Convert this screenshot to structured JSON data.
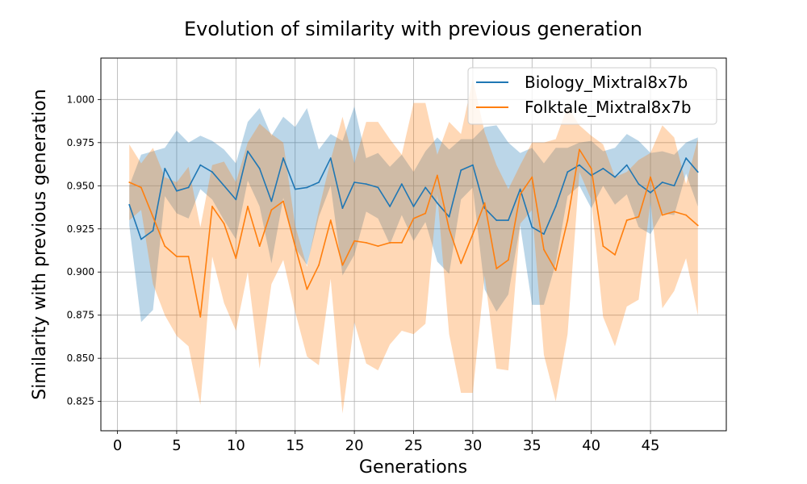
{
  "chart_data": {
    "type": "line",
    "title": "Evolution of similarity with previous generation",
    "xlabel": "Generations",
    "ylabel": "Similarity with previous generation",
    "xlim": [
      -1.4,
      51.4
    ],
    "ylim": [
      0.808,
      1.024
    ],
    "xticks": [
      0,
      5,
      10,
      15,
      20,
      25,
      30,
      35,
      40,
      45
    ],
    "yticks": [
      0.825,
      0.85,
      0.875,
      0.9,
      0.925,
      0.95,
      0.975,
      1.0
    ],
    "xtick_labels": [
      "0",
      "5",
      "10",
      "15",
      "20",
      "25",
      "30",
      "35",
      "40",
      "45"
    ],
    "ytick_labels": [
      "0.825",
      "0.850",
      "0.875",
      "0.900",
      "0.925",
      "0.950",
      "0.975",
      "1.000"
    ],
    "grid": true,
    "legend_position": "top-right",
    "x": [
      1,
      2,
      3,
      4,
      5,
      6,
      7,
      8,
      9,
      10,
      11,
      12,
      13,
      14,
      15,
      16,
      17,
      18,
      19,
      20,
      21,
      22,
      23,
      24,
      25,
      26,
      27,
      28,
      29,
      30,
      31,
      32,
      33,
      34,
      35,
      36,
      37,
      38,
      39,
      40,
      41,
      42,
      43,
      44,
      45,
      46,
      47,
      48,
      49
    ],
    "series": [
      {
        "name": "Biology_Mixtral8x7b",
        "color": "#1f77b4",
        "band_color": "#1f77b4",
        "mean": [
          0.939,
          0.919,
          0.924,
          0.96,
          0.947,
          0.949,
          0.962,
          0.958,
          0.95,
          0.942,
          0.97,
          0.96,
          0.941,
          0.966,
          0.948,
          0.949,
          0.952,
          0.966,
          0.937,
          0.952,
          0.951,
          0.949,
          0.938,
          0.951,
          0.938,
          0.949,
          0.94,
          0.932,
          0.959,
          0.962,
          0.937,
          0.93,
          0.93,
          0.948,
          0.926,
          0.922,
          0.938,
          0.958,
          0.962,
          0.956,
          0.96,
          0.955,
          0.962,
          0.951,
          0.946,
          0.952,
          0.95,
          0.966,
          0.958
        ],
        "upper": [
          0.95,
          0.968,
          0.97,
          0.972,
          0.982,
          0.975,
          0.979,
          0.976,
          0.971,
          0.963,
          0.987,
          0.995,
          0.979,
          0.99,
          0.984,
          0.995,
          0.971,
          0.98,
          0.976,
          0.996,
          0.966,
          0.969,
          0.961,
          0.968,
          0.958,
          0.97,
          0.978,
          0.971,
          0.977,
          0.977,
          0.984,
          0.985,
          0.975,
          0.969,
          0.972,
          0.963,
          0.972,
          0.972,
          0.975,
          0.976,
          0.97,
          0.972,
          0.98,
          0.976,
          0.969,
          0.97,
          0.968,
          0.975,
          0.978
        ],
        "lower": [
          0.927,
          0.871,
          0.878,
          0.944,
          0.934,
          0.931,
          0.948,
          0.942,
          0.93,
          0.919,
          0.953,
          0.938,
          0.905,
          0.943,
          0.914,
          0.904,
          0.932,
          0.95,
          0.898,
          0.91,
          0.935,
          0.931,
          0.916,
          0.933,
          0.918,
          0.929,
          0.906,
          0.899,
          0.942,
          0.949,
          0.89,
          0.877,
          0.887,
          0.927,
          0.881,
          0.881,
          0.905,
          0.944,
          0.95,
          0.937,
          0.95,
          0.939,
          0.945,
          0.926,
          0.922,
          0.934,
          0.933,
          0.957,
          0.938
        ]
      },
      {
        "name": "Folktale_Mixtral8x7b",
        "color": "#ff7f0e",
        "band_color": "#ff7f0e",
        "mean": [
          0.952,
          0.949,
          0.932,
          0.915,
          0.909,
          0.909,
          0.874,
          0.938,
          0.928,
          0.908,
          0.938,
          0.915,
          0.936,
          0.941,
          0.915,
          0.89,
          0.904,
          0.93,
          0.904,
          0.918,
          0.917,
          0.915,
          0.917,
          0.917,
          0.931,
          0.934,
          0.956,
          0.925,
          0.905,
          0.922,
          0.94,
          0.902,
          0.907,
          0.945,
          0.955,
          0.913,
          0.901,
          0.93,
          0.971,
          0.96,
          0.915,
          0.91,
          0.93,
          0.932,
          0.955,
          0.933,
          0.935,
          0.933,
          0.927
        ],
        "upper": [
          0.974,
          0.963,
          0.972,
          0.955,
          0.952,
          0.961,
          0.926,
          0.962,
          0.964,
          0.952,
          0.975,
          0.986,
          0.98,
          0.975,
          0.927,
          0.903,
          0.936,
          0.965,
          0.99,
          0.963,
          0.987,
          0.987,
          0.977,
          0.968,
          0.998,
          0.998,
          0.968,
          0.987,
          0.98,
          1.012,
          0.981,
          0.962,
          0.948,
          0.962,
          0.975,
          0.975,
          0.977,
          0.996,
          0.985,
          0.979,
          0.974,
          0.955,
          0.958,
          0.965,
          0.969,
          0.985,
          0.978,
          0.951,
          0.977
        ],
        "lower": [
          0.93,
          0.936,
          0.893,
          0.875,
          0.863,
          0.857,
          0.823,
          0.909,
          0.882,
          0.866,
          0.9,
          0.844,
          0.893,
          0.907,
          0.877,
          0.851,
          0.846,
          0.896,
          0.818,
          0.871,
          0.847,
          0.843,
          0.858,
          0.866,
          0.864,
          0.87,
          0.945,
          0.864,
          0.83,
          0.83,
          0.898,
          0.844,
          0.843,
          0.928,
          0.936,
          0.852,
          0.825,
          0.864,
          0.958,
          0.942,
          0.874,
          0.857,
          0.88,
          0.884,
          0.941,
          0.879,
          0.889,
          0.908,
          0.875
        ]
      }
    ]
  }
}
